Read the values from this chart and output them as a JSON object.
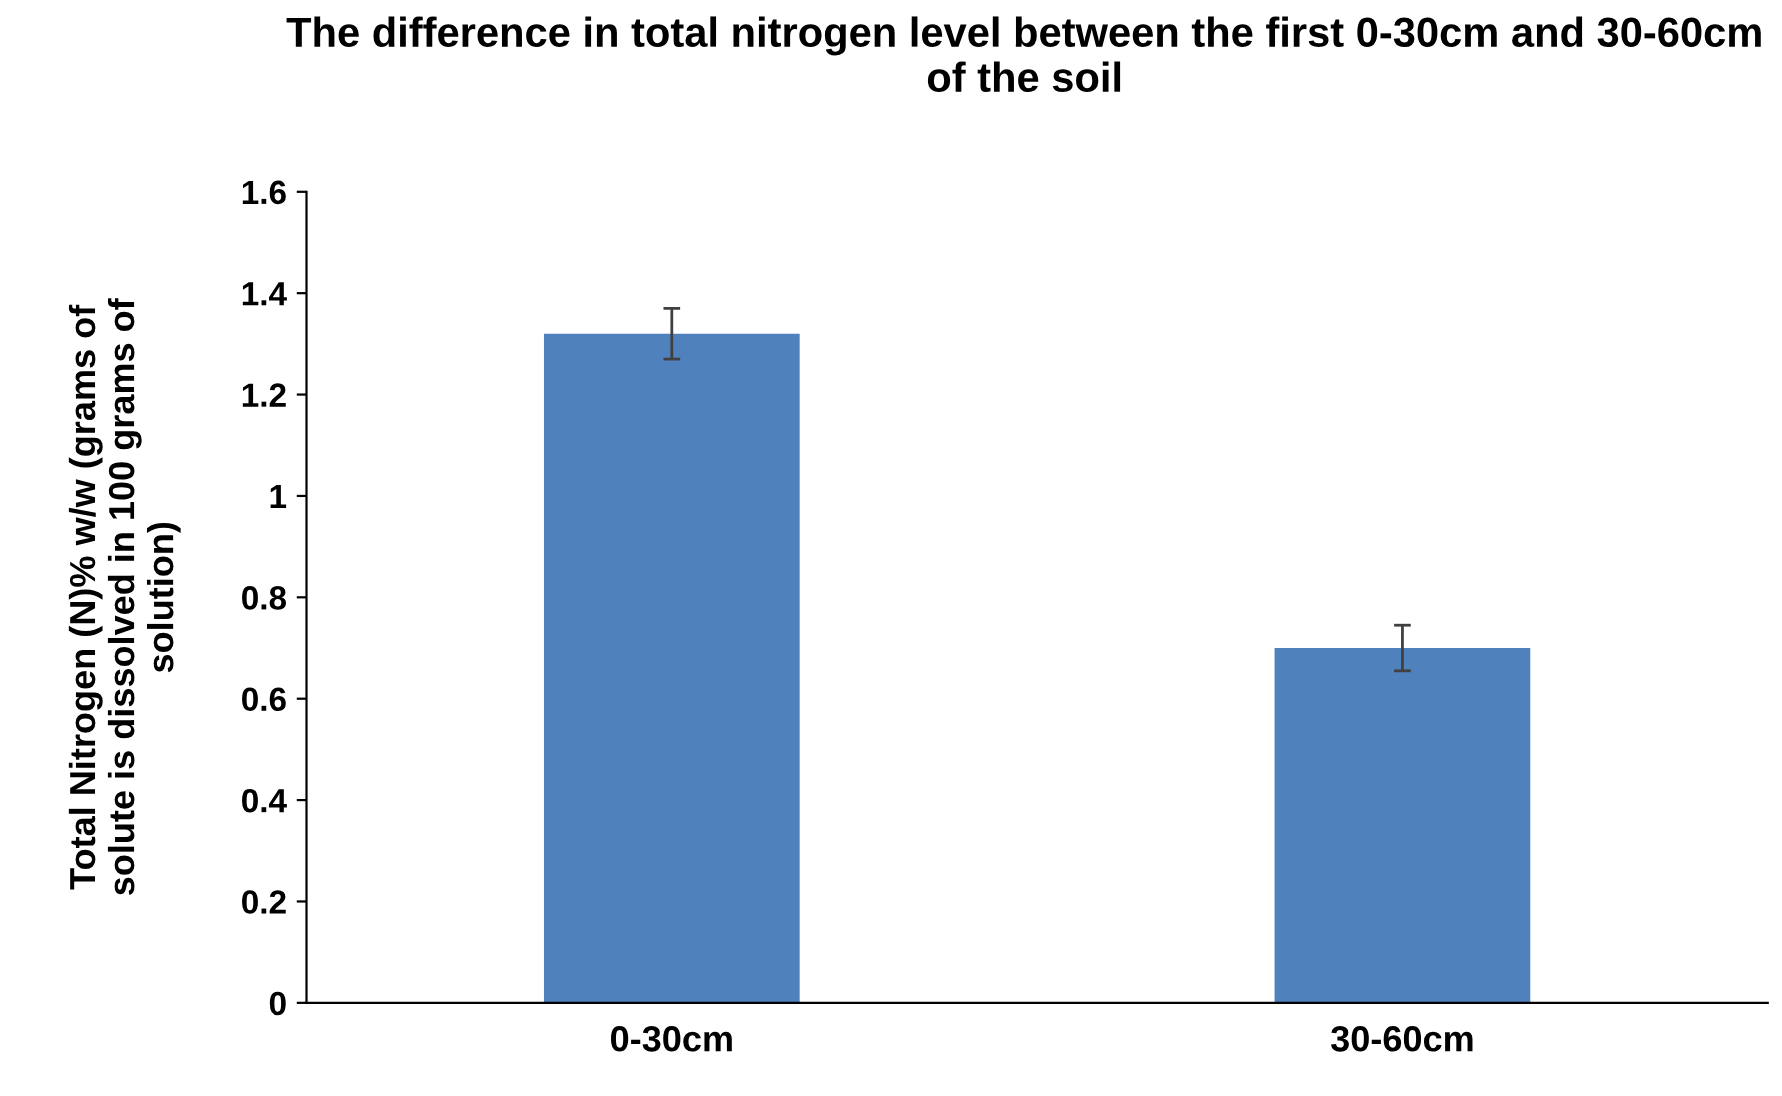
{
  "chart_data": {
    "type": "bar",
    "title": "The difference in total nitrogen level between the first 0-30cm and 30-60cm of the soil",
    "ylabel": "Total Nitrogen (N)% w/w (grams of solute is dissolved in 100 grams of solution)",
    "categories": [
      "0-30cm",
      "30-60cm"
    ],
    "series": [
      {
        "color": "#4f81bd",
        "values": [
          1.32,
          0.7
        ],
        "errors": [
          0.05,
          0.045
        ]
      }
    ],
    "ylim": [
      0,
      1.6
    ],
    "yticks": [
      0,
      0.2,
      0.4,
      0.6,
      0.8,
      1,
      1.2,
      1.4,
      1.6
    ],
    "grid": false,
    "legend": false
  }
}
